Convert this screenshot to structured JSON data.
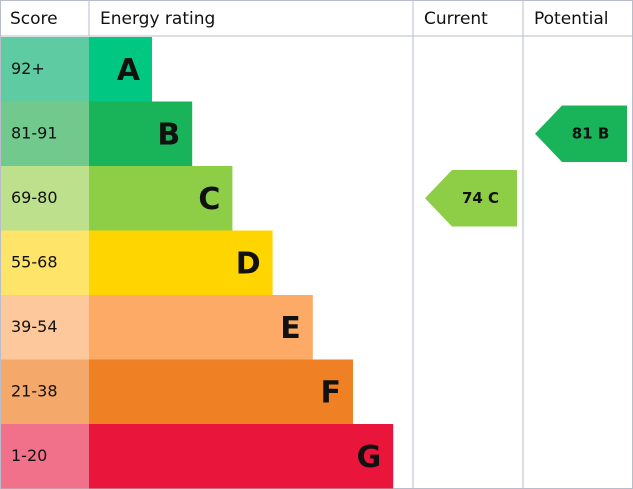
{
  "headers": {
    "score": "Score",
    "rating": "Energy rating",
    "current": "Current",
    "potential": "Potential"
  },
  "bands": [
    {
      "score": "92+",
      "letter": "A",
      "color": "#00c781",
      "score_color": "#5ecba3"
    },
    {
      "score": "81-91",
      "letter": "B",
      "color": "#19b459",
      "score_color": "#72c98e"
    },
    {
      "score": "69-80",
      "letter": "C",
      "color": "#8dce46",
      "score_color": "#bde08c"
    },
    {
      "score": "55-68",
      "letter": "D",
      "color": "#ffd500",
      "score_color": "#ffe46a"
    },
    {
      "score": "39-54",
      "letter": "E",
      "color": "#fcaa65",
      "score_color": "#fdc89c"
    },
    {
      "score": "21-38",
      "letter": "F",
      "color": "#ef8023",
      "score_color": "#f4a86a"
    },
    {
      "score": "1-20",
      "letter": "G",
      "color": "#e9153b",
      "score_color": "#f07189"
    }
  ],
  "current": "74 C",
  "potential": "81 B"
}
